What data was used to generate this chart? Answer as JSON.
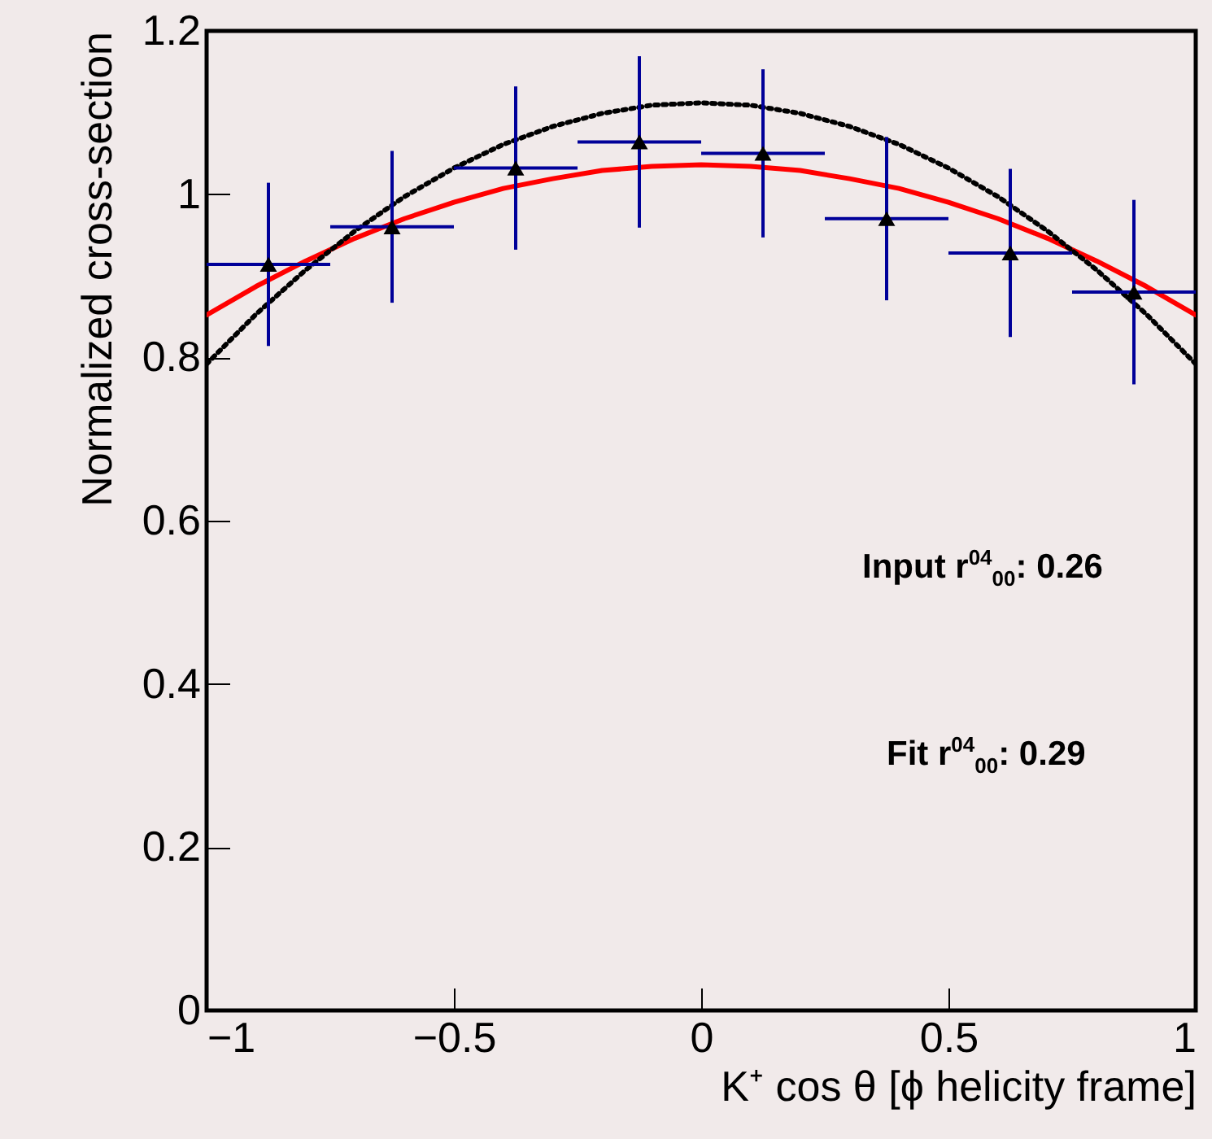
{
  "chart_data": {
    "type": "scatter",
    "xlabel": "K⁺ cos θ [ϕ helicity frame]",
    "ylabel": "Normalized cross-section",
    "xlim": [
      -1,
      1
    ],
    "xticks": [
      {
        "value": -1,
        "label": "−1"
      },
      {
        "value": -0.5,
        "label": "−0.5"
      },
      0,
      0.5,
      1
    ],
    "ylim": [
      0,
      1.2
    ],
    "yticks": [
      0,
      0.2,
      0.4,
      0.6,
      0.8,
      1,
      1.2
    ],
    "grid": false,
    "annotations": [
      "Input r$^{04}$$_{00}$:  0.26",
      "Fit r$^{04}$$_{00}$:  0.29"
    ],
    "series": [
      {
        "type": "line",
        "marker": "none",
        "color": "#ff0000",
        "line_style": "solid",
        "x": [
          -1,
          -0.9,
          -0.8,
          -0.7,
          -0.6,
          -0.5,
          -0.4,
          -0.3,
          -0.2,
          -0.1,
          0,
          0.1,
          0.2,
          0.3,
          0.4,
          0.5,
          0.6,
          0.7,
          0.8,
          0.9,
          1
        ],
        "values": [
          0.852,
          0.887,
          0.918,
          0.946,
          0.97,
          0.99,
          1.007,
          1.019,
          1.029,
          1.034,
          1.036,
          1.034,
          1.029,
          1.019,
          1.007,
          0.99,
          0.97,
          0.946,
          0.918,
          0.887,
          0.852
        ]
      },
      {
        "type": "line",
        "marker": "none",
        "color": "#000000",
        "line_style": "dotted",
        "x": [
          -1,
          -0.9,
          -0.8,
          -0.7,
          -0.6,
          -0.5,
          -0.4,
          -0.3,
          -0.2,
          -0.1,
          0,
          0.1,
          0.2,
          0.3,
          0.4,
          0.5,
          0.6,
          0.7,
          0.8,
          0.9,
          1
        ],
        "values": [
          0.792,
          0.853,
          0.907,
          0.955,
          0.997,
          1.032,
          1.061,
          1.083,
          1.099,
          1.109,
          1.112,
          1.109,
          1.099,
          1.083,
          1.061,
          1.032,
          0.997,
          0.955,
          0.907,
          0.853,
          0.792
        ]
      },
      {
        "marker": "triangle",
        "color": "#000000",
        "x": [
          -0.875,
          -0.625,
          -0.375,
          -0.125,
          0.125,
          0.375,
          0.625,
          0.875
        ],
        "values": [
          0.914,
          0.96,
          1.032,
          1.064,
          1.05,
          0.97,
          0.928,
          0.88
        ],
        "errors": [
          0.1,
          0.093,
          0.1,
          0.105,
          0.103,
          0.1,
          0.103,
          0.113
        ],
        "xerrors": [
          0.125,
          0.125,
          0.125,
          0.125,
          0.125,
          0.125,
          0.125,
          0.125
        ]
      }
    ]
  }
}
